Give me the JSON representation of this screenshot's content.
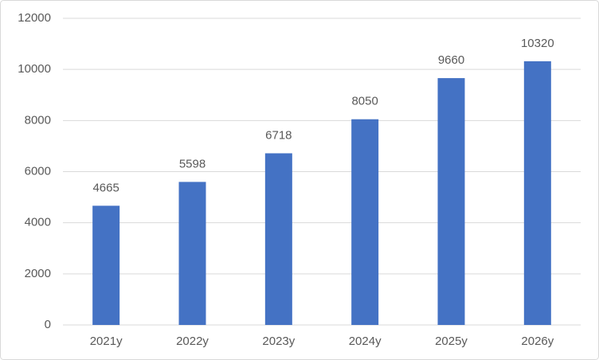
{
  "chart_data": {
    "type": "bar",
    "categories": [
      "2021y",
      "2022y",
      "2023y",
      "2024y",
      "2025y",
      "2026y"
    ],
    "values": [
      4665,
      5598,
      6718,
      8050,
      9660,
      10320
    ],
    "color": "#4472c4",
    "ylim": [
      0,
      12000
    ],
    "yticks": [
      0,
      2000,
      4000,
      6000,
      8000,
      10000,
      12000
    ],
    "grid": true
  }
}
